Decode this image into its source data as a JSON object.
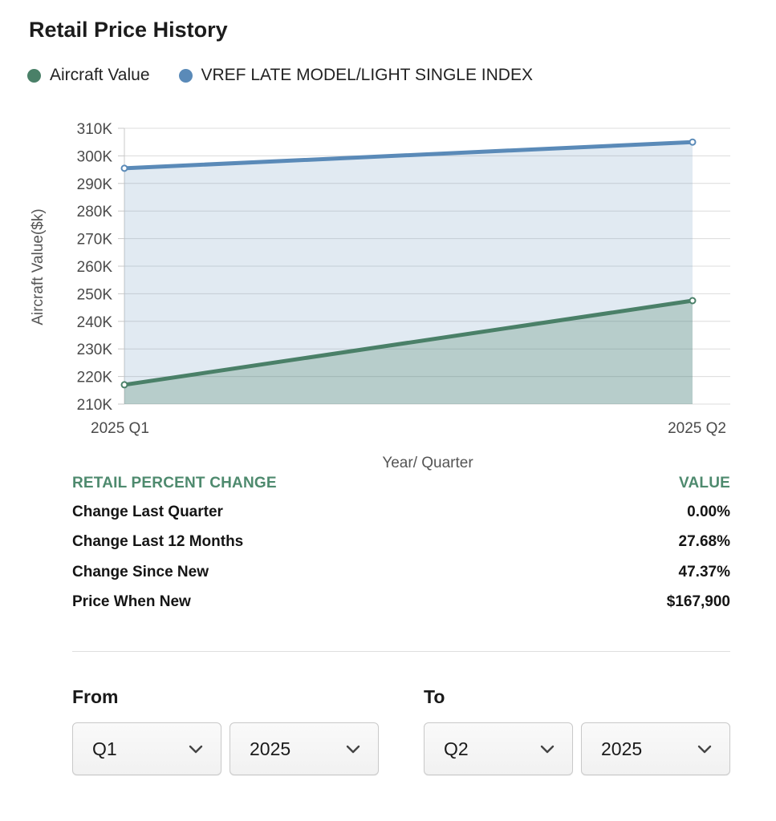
{
  "title": "Retail Price History",
  "legend": [
    {
      "label": "Aircraft Value",
      "color": "#4a8068"
    },
    {
      "label": "VREF LATE MODEL/LIGHT SINGLE INDEX",
      "color": "#5a8ab8"
    }
  ],
  "chart_data": {
    "type": "area",
    "categories": [
      "2025 Q1",
      "2025 Q2"
    ],
    "series": [
      {
        "name": "Aircraft Value",
        "values": [
          217000,
          247500
        ],
        "color": "#4a8068"
      },
      {
        "name": "VREF LATE MODEL/LIGHT SINGLE INDEX",
        "values": [
          295500,
          305000
        ],
        "color": "#5a8ab8"
      }
    ],
    "ylim": [
      210000,
      310000
    ],
    "yticks": [
      310000,
      300000,
      290000,
      280000,
      270000,
      260000,
      250000,
      240000,
      230000,
      220000,
      210000
    ],
    "ytick_labels": [
      "310K",
      "300K",
      "290K",
      "280K",
      "270K",
      "260K",
      "250K",
      "240K",
      "230K",
      "220K",
      "210K"
    ],
    "xlabel": "Year/ Quarter",
    "ylabel": "Aircraft Value($k)",
    "grid": true,
    "legend_position": "top-left"
  },
  "table": {
    "header_left": "RETAIL PERCENT CHANGE",
    "header_right": "VALUE",
    "rows": [
      {
        "label": "Change Last Quarter",
        "value": "0.00%"
      },
      {
        "label": "Change Last 12 Months",
        "value": "27.68%"
      },
      {
        "label": "Change Since New",
        "value": "47.37%"
      },
      {
        "label": "Price When New",
        "value": "$167,900"
      }
    ]
  },
  "range": {
    "from_label": "From",
    "to_label": "To",
    "from_quarter": "Q1",
    "from_year": "2025",
    "to_quarter": "Q2",
    "to_year": "2025",
    "chevron_icon": "chevron-down-icon"
  }
}
